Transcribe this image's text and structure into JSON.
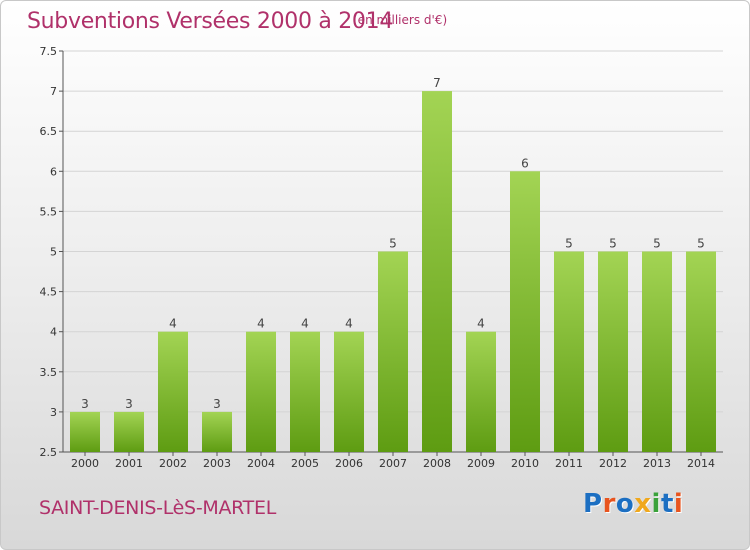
{
  "header": {
    "title": "Subventions Versées 2000 à 2014",
    "unit_note": "(en milliers d'€)"
  },
  "footer": {
    "commune": "SAINT-DENIS-LèS-MARTEL",
    "logo_text": "Proxiti",
    "logo_colors": [
      "#1c6fc2",
      "#e8541e",
      "#1c6fc2",
      "#f0a81c",
      "#3aa23a",
      "#1c6fc2",
      "#e8541e"
    ]
  },
  "colors": {
    "title": "#b0316a",
    "bar_top": "#a3d454",
    "bar_bottom": "#5e9c12"
  },
  "chart_data": {
    "type": "bar",
    "categories": [
      "2000",
      "2001",
      "2002",
      "2003",
      "2004",
      "2005",
      "2006",
      "2007",
      "2008",
      "2009",
      "2010",
      "2011",
      "2012",
      "2013",
      "2014"
    ],
    "values": [
      3,
      3,
      4,
      3,
      4,
      4,
      4,
      5,
      7,
      4,
      6,
      5,
      5,
      5,
      5
    ],
    "value_labels": [
      "3",
      "3",
      "4",
      "3",
      "4",
      "4",
      "4",
      "5",
      "7",
      "4",
      "6",
      "5",
      "5",
      "5",
      "5"
    ],
    "ylim": [
      2.5,
      7.5
    ],
    "yticks": [
      "2.5",
      "3",
      "3.5",
      "4",
      "4.5",
      "5",
      "5.5",
      "6",
      "6.5",
      "7",
      "7.5"
    ],
    "grid": true,
    "legend": "none",
    "title": "Subventions Versées 2000 à 2014",
    "xlabel": "",
    "ylabel": ""
  }
}
